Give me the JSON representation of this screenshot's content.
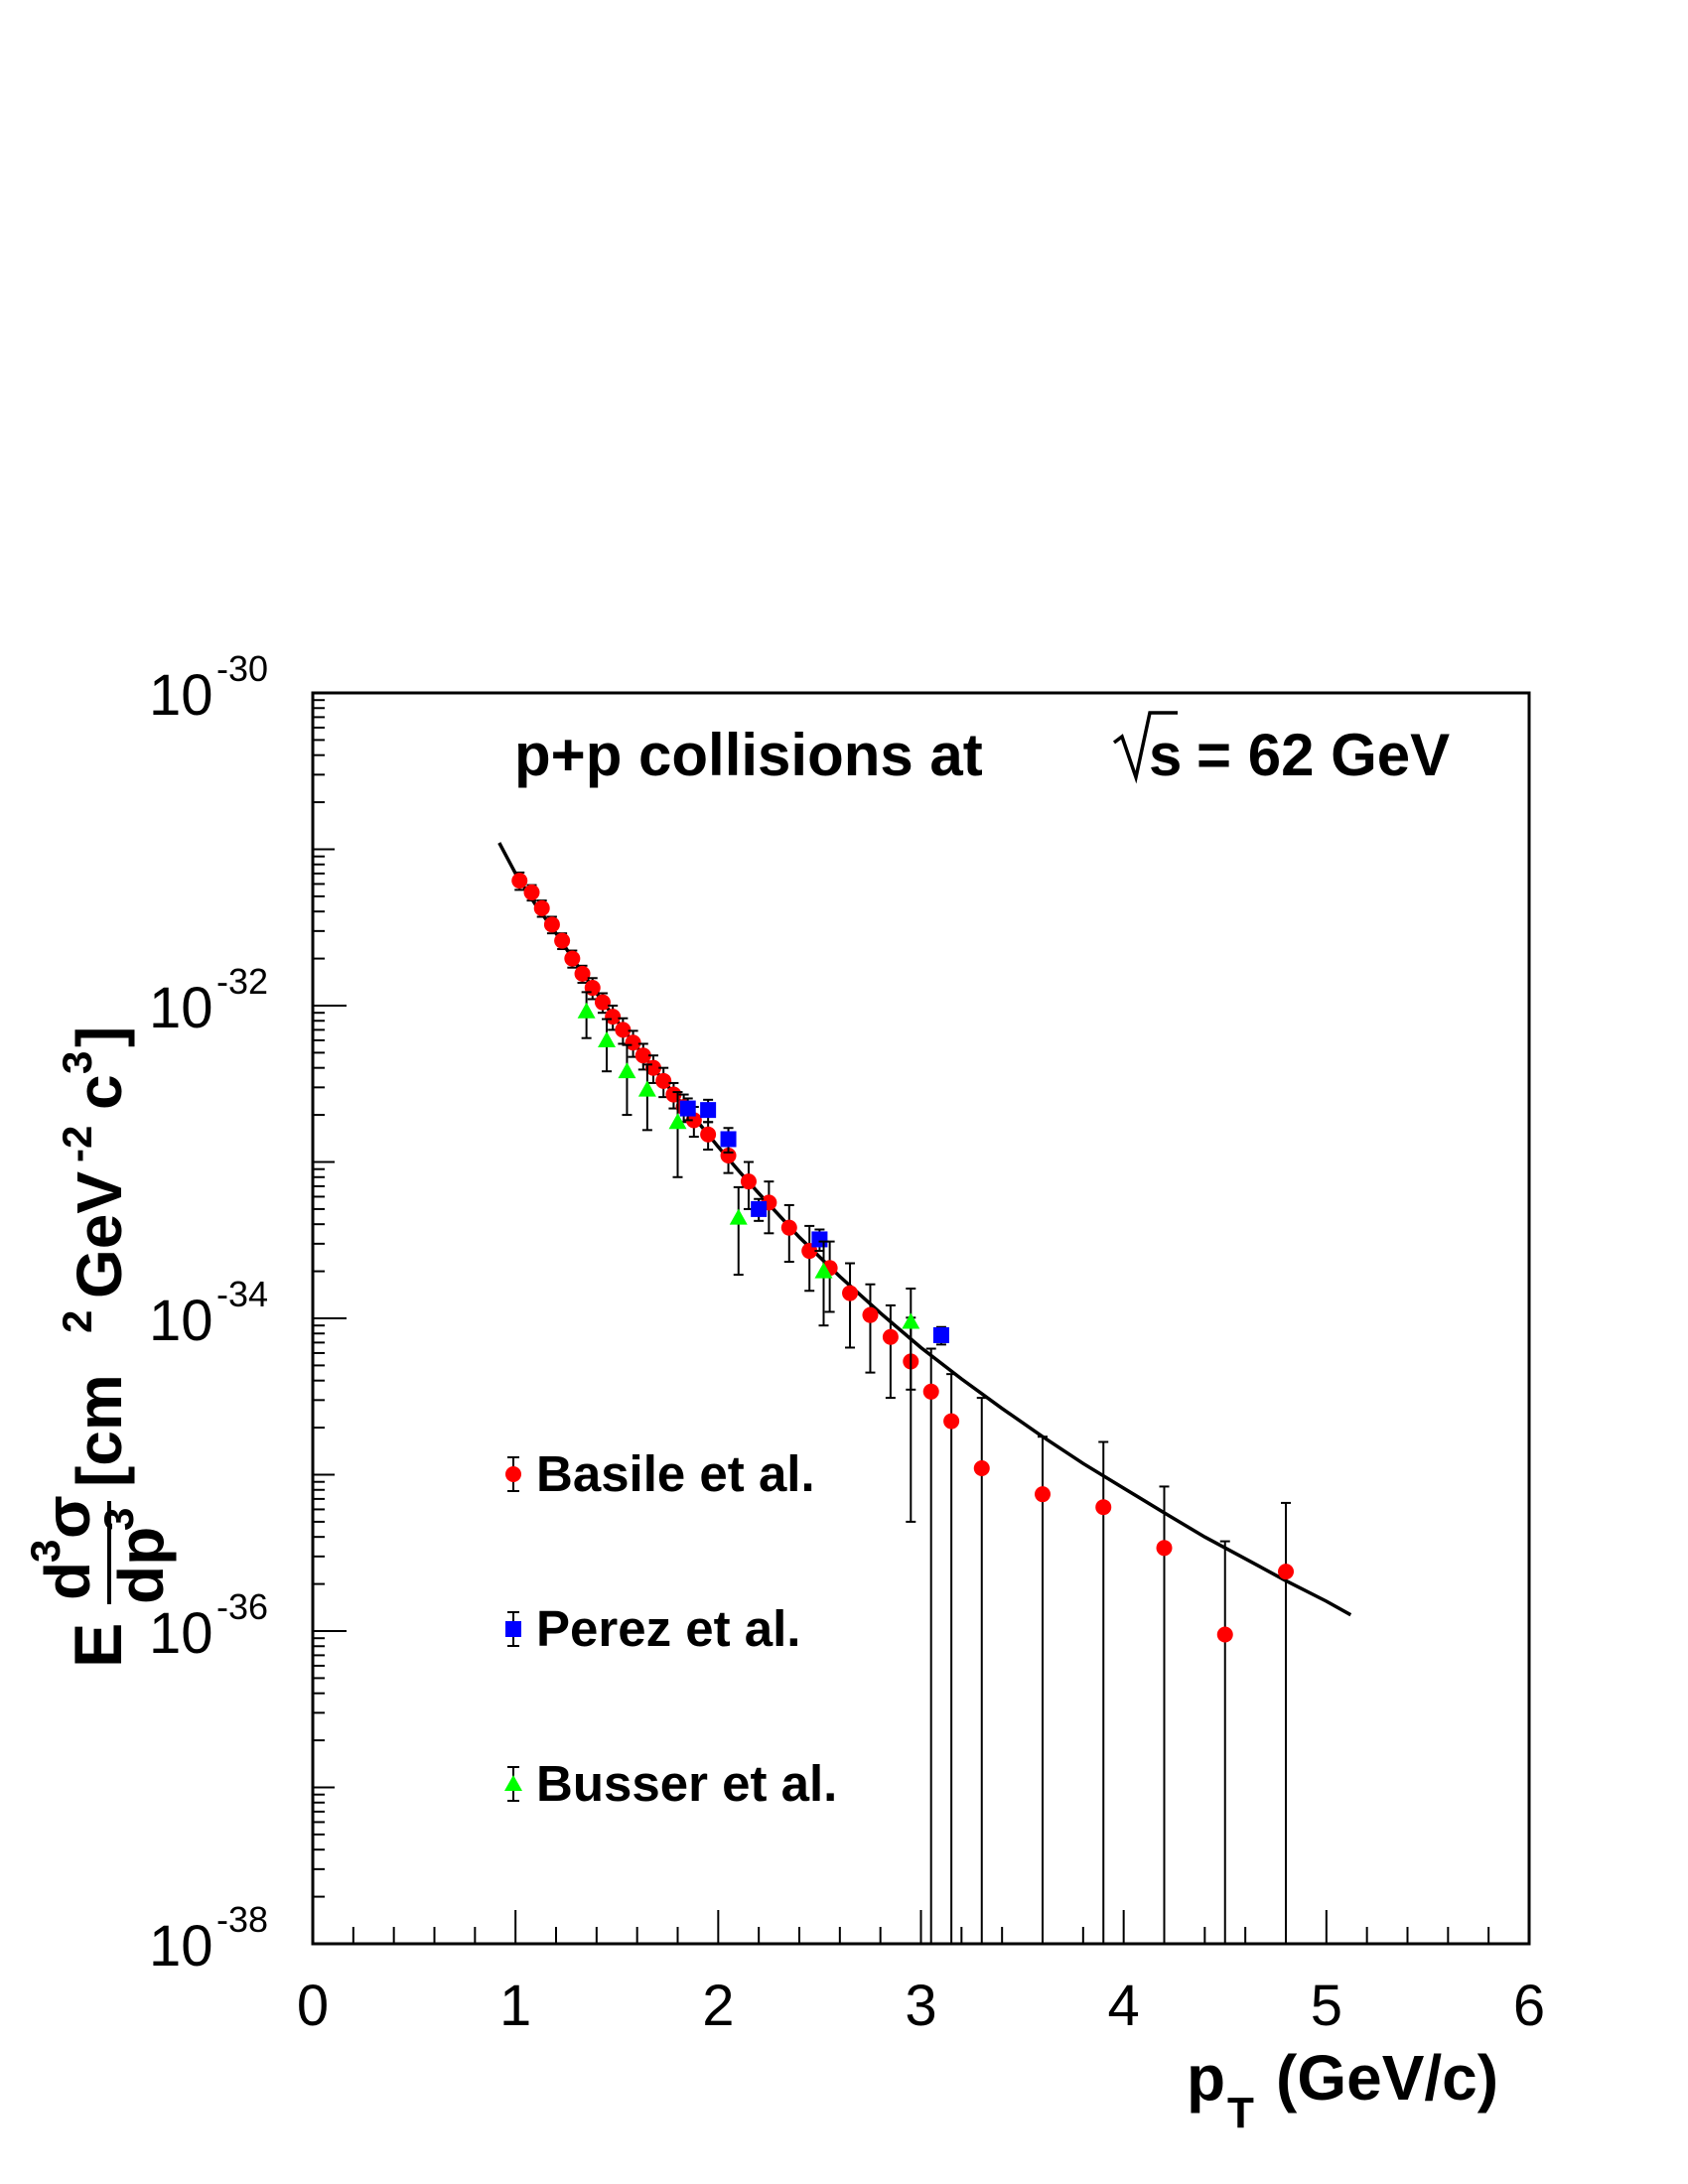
{
  "chart_data": {
    "type": "scatter",
    "title": "p+p collisions at √s = 62 GeV",
    "title_parts": {
      "pre": "p+p collisions at",
      "root": "s",
      "post": "= 62 GeV"
    },
    "xlabel": {
      "main": "p",
      "sub": "T",
      "rest": "(GeV/c)"
    },
    "ylabel": {
      "prefix": "E",
      "num_d": "d",
      "num_exp": "3",
      "num_sigma": "σ",
      "den_d": "dp",
      "den_exp": "3",
      "unit_a": "[cm",
      "unit_a_exp": "2",
      "unit_b": "GeV",
      "unit_b_exp": "-2",
      "unit_c": "c",
      "unit_c_exp": "3",
      "unit_close": "]"
    },
    "xlim": [
      0,
      6
    ],
    "ylim_log10": [
      -38,
      -30
    ],
    "y_scale": "log",
    "x_ticks": [
      "0",
      "1",
      "2",
      "3",
      "4",
      "5",
      "6"
    ],
    "y_ticks": [
      {
        "base": "10",
        "exp": "-30"
      },
      {
        "base": "10",
        "exp": "-32"
      },
      {
        "base": "10",
        "exp": "-34"
      },
      {
        "base": "10",
        "exp": "-36"
      },
      {
        "base": "10",
        "exp": "-38"
      }
    ],
    "grid": false,
    "legend_position": "left-middle",
    "series": [
      {
        "name": "Basile et al.",
        "marker": "circle",
        "color": "#ff0000",
        "points": [
          {
            "x": 1.02,
            "y": 6.3e-32,
            "yerr": [
              8e-33,
              8e-33
            ]
          },
          {
            "x": 1.08,
            "y": 5.3e-32,
            "yerr": [
              6e-33,
              6e-33
            ]
          },
          {
            "x": 1.13,
            "y": 4.2e-32,
            "yerr": [
              5e-33,
              5e-33
            ]
          },
          {
            "x": 1.18,
            "y": 3.3e-32,
            "yerr": [
              4e-33,
              4e-33
            ]
          },
          {
            "x": 1.23,
            "y": 2.6e-32,
            "yerr": [
              3e-33,
              3e-33
            ]
          },
          {
            "x": 1.28,
            "y": 2e-32,
            "yerr": [
              2.5e-33,
              2.5e-33
            ]
          },
          {
            "x": 1.33,
            "y": 1.6e-32,
            "yerr": [
              2e-33,
              2e-33
            ]
          },
          {
            "x": 1.38,
            "y": 1.3e-32,
            "yerr": [
              2e-33,
              2e-33
            ]
          },
          {
            "x": 1.43,
            "y": 1.05e-32,
            "yerr": [
              1.5e-33,
              1.5e-33
            ]
          },
          {
            "x": 1.48,
            "y": 8.5e-33,
            "yerr": [
              1.5e-33,
              1.5e-33
            ]
          },
          {
            "x": 1.53,
            "y": 7e-33,
            "yerr": [
              1.3e-33,
              1.3e-33
            ]
          },
          {
            "x": 1.58,
            "y": 5.8e-33,
            "yerr": [
              1.1e-33,
              1.1e-33
            ]
          },
          {
            "x": 1.63,
            "y": 4.8e-33,
            "yerr": [
              9e-34,
              9e-34
            ]
          },
          {
            "x": 1.68,
            "y": 4e-33,
            "yerr": [
              8e-34,
              8e-34
            ]
          },
          {
            "x": 1.73,
            "y": 3.3e-33,
            "yerr": [
              7e-34,
              7e-34
            ]
          },
          {
            "x": 1.78,
            "y": 2.7e-33,
            "yerr": [
              5e-34,
              5e-34
            ]
          },
          {
            "x": 1.83,
            "y": 2.25e-33,
            "yerr": [
              4.5e-34,
              4.5e-34
            ]
          },
          {
            "x": 1.88,
            "y": 1.85e-33,
            "yerr": [
              4e-34,
              4e-34
            ]
          },
          {
            "x": 1.95,
            "y": 1.5e-33,
            "yerr": [
              3e-34,
              3e-34
            ]
          },
          {
            "x": 2.05,
            "y": 1.1e-33,
            "yerr": [
              2.5e-34,
              2.5e-34
            ]
          },
          {
            "x": 2.15,
            "y": 7.5e-34,
            "yerr": [
              2.5e-34,
              2.5e-34
            ]
          },
          {
            "x": 2.25,
            "y": 5.5e-34,
            "yerr": [
              2e-34,
              2e-34
            ]
          },
          {
            "x": 2.35,
            "y": 3.8e-34,
            "yerr": [
              1.5e-34,
              1.5e-34
            ]
          },
          {
            "x": 2.45,
            "y": 2.7e-34,
            "yerr": [
              1.2e-34,
              1.2e-34
            ]
          },
          {
            "x": 2.55,
            "y": 2.1e-34,
            "yerr": [
              1e-34,
              1e-34
            ]
          },
          {
            "x": 2.65,
            "y": 1.45e-34,
            "yerr": [
              8e-35,
              8e-35
            ]
          },
          {
            "x": 2.75,
            "y": 1.05e-34,
            "yerr": [
              6e-35,
              6e-35
            ]
          },
          {
            "x": 2.85,
            "y": 7.6e-35,
            "yerr": [
              4.5e-35,
              4.5e-35
            ]
          },
          {
            "x": 2.95,
            "y": 5.3e-35,
            "yerr": [
              4.8e-35,
              4.8e-35
            ]
          },
          {
            "x": 3.05,
            "y": 3.4e-35,
            "yerr": [
              3.4e-35,
              3e-35
            ]
          },
          {
            "x": 3.15,
            "y": 2.2e-35,
            "yerr": [
              2.2e-35,
              2.2e-35
            ]
          },
          {
            "x": 3.3,
            "y": 1.1e-35,
            "yerr": [
              1.1e-35,
              2e-35
            ]
          },
          {
            "x": 3.6,
            "y": 7.5e-36,
            "yerr": [
              7.5e-36,
              1e-35
            ]
          },
          {
            "x": 3.9,
            "y": 6.2e-36,
            "yerr": [
              6.2e-36,
              1e-35
            ]
          },
          {
            "x": 4.2,
            "y": 3.4e-36,
            "yerr": [
              3.4e-36,
              5e-36
            ]
          },
          {
            "x": 4.5,
            "y": 9.5e-37,
            "yerr": [
              9.5e-37,
              2.8e-36
            ]
          },
          {
            "x": 4.8,
            "y": 2.4e-36,
            "yerr": [
              2.4e-36,
              4.2e-36
            ]
          }
        ]
      },
      {
        "name": "Perez et al.",
        "marker": "square",
        "color": "#0000ff",
        "points": [
          {
            "x": 1.85,
            "y": 2.2e-33,
            "yerr": [
              3.5e-34,
              3.5e-34
            ]
          },
          {
            "x": 1.95,
            "y": 2.15e-33,
            "yerr": [
              3.5e-34,
              3.5e-34
            ]
          },
          {
            "x": 2.05,
            "y": 1.4e-33,
            "yerr": [
              2.5e-34,
              2.5e-34
            ]
          },
          {
            "x": 2.2,
            "y": 5e-34,
            "yerr": [
              8e-35,
              8e-35
            ]
          },
          {
            "x": 2.5,
            "y": 3.2e-34,
            "yerr": [
              5e-35,
              5e-35
            ]
          },
          {
            "x": 3.1,
            "y": 7.8e-35,
            "yerr": [
              1e-35,
              1e-35
            ]
          }
        ]
      },
      {
        "name": "Busser et al.",
        "marker": "triangle",
        "color": "#00ff00",
        "points": [
          {
            "x": 1.35,
            "y": 9.2e-33,
            "yerr": [
              3e-33,
              3e-33
            ]
          },
          {
            "x": 1.45,
            "y": 6e-33,
            "yerr": [
              2.2e-33,
              2.2e-33
            ]
          },
          {
            "x": 1.55,
            "y": 3.8e-33,
            "yerr": [
              1.8e-33,
              1.8e-33
            ]
          },
          {
            "x": 1.65,
            "y": 2.9e-33,
            "yerr": [
              1.3e-33,
              1.3e-33
            ]
          },
          {
            "x": 1.8,
            "y": 1.8e-33,
            "yerr": [
              1e-33,
              1e-33
            ]
          },
          {
            "x": 2.1,
            "y": 4.4e-34,
            "yerr": [
              2.5e-34,
              2.5e-34
            ]
          },
          {
            "x": 2.52,
            "y": 2e-34,
            "yerr": [
              1.1e-34,
              1.1e-34
            ]
          },
          {
            "x": 2.95,
            "y": 9.5e-35,
            "yerr": [
              6e-35,
              6e-35
            ]
          }
        ]
      }
    ],
    "fit_curve": {
      "color": "#000000",
      "points": [
        [
          0.92,
          1.1e-31
        ],
        [
          1.0,
          7e-32
        ],
        [
          1.1,
          4.4e-32
        ],
        [
          1.2,
          2.9e-32
        ],
        [
          1.3,
          1.85e-32
        ],
        [
          1.4,
          1.2e-32
        ],
        [
          1.5,
          8e-33
        ],
        [
          1.6,
          5.4e-33
        ],
        [
          1.7,
          3.7e-33
        ],
        [
          1.8,
          2.55e-33
        ],
        [
          1.9,
          1.8e-33
        ],
        [
          2.0,
          1.25e-33
        ],
        [
          2.1,
          8.8e-34
        ],
        [
          2.2,
          6.3e-34
        ],
        [
          2.4,
          3.3e-34
        ],
        [
          2.6,
          1.85e-34
        ],
        [
          2.8,
          1.08e-34
        ],
        [
          3.0,
          6.5e-35
        ],
        [
          3.2,
          4.1e-35
        ],
        [
          3.4,
          2.65e-35
        ],
        [
          3.6,
          1.75e-35
        ],
        [
          3.8,
          1.18e-35
        ],
        [
          4.0,
          8.2e-36
        ],
        [
          4.2,
          5.7e-36
        ],
        [
          4.4,
          4e-36
        ],
        [
          4.6,
          2.9e-36
        ],
        [
          4.8,
          2.1e-36
        ],
        [
          5.0,
          1.55e-36
        ],
        [
          5.12,
          1.27e-36
        ]
      ]
    }
  }
}
